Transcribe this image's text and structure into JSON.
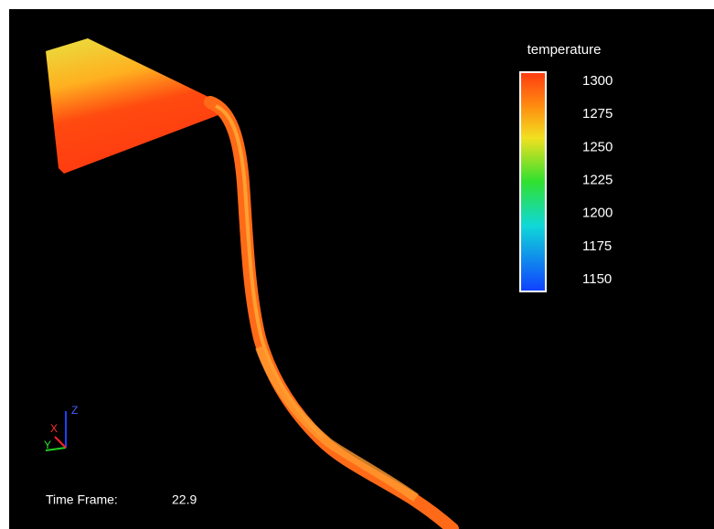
{
  "legend": {
    "title": "temperature",
    "ticks": [
      1300,
      1275,
      1250,
      1225,
      1200,
      1175,
      1150
    ]
  },
  "triad": {
    "x": "X",
    "y": "Y",
    "z": "Z"
  },
  "time_frame": {
    "label": "Time Frame:",
    "value": 22.9
  }
}
